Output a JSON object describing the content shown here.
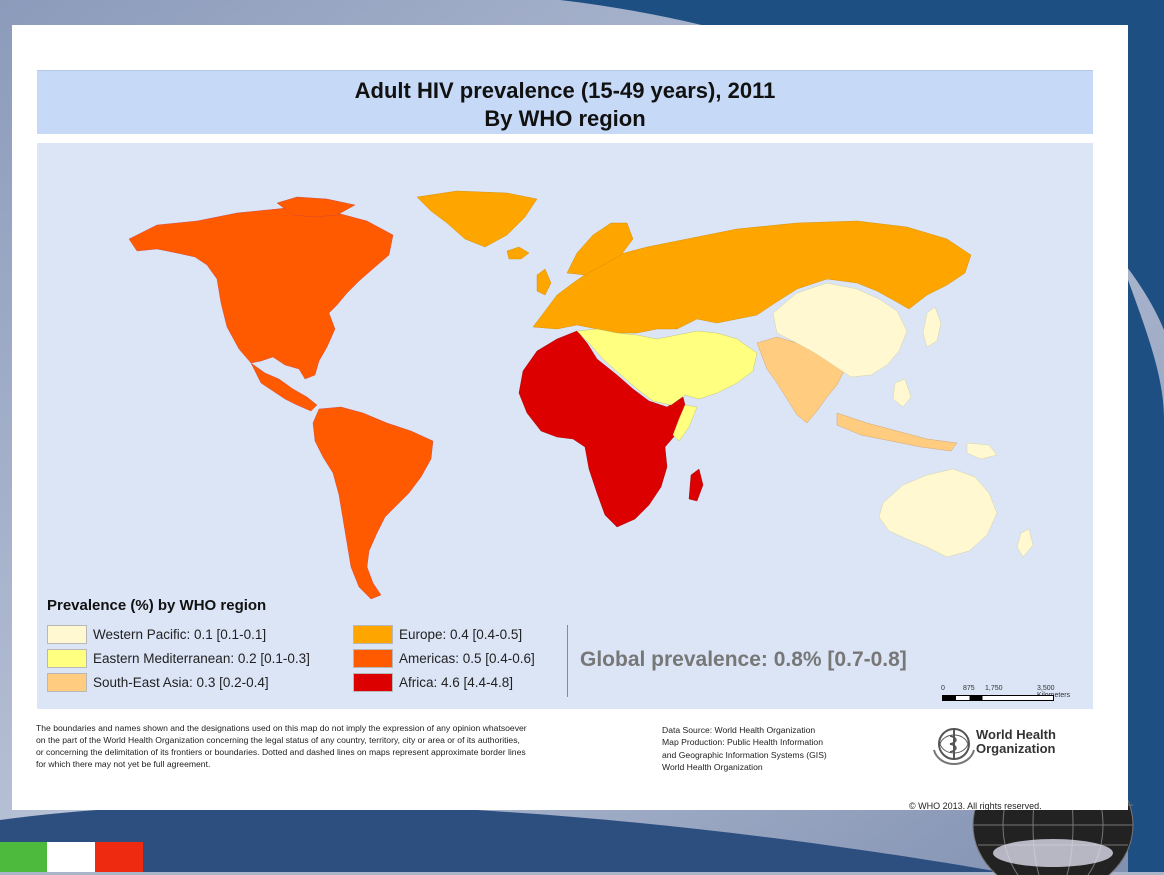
{
  "colors": {
    "western_pacific": "#fff8d0",
    "eastern_mediterranean": "#ffff80",
    "south_east_asia": "#ffcc80",
    "europe": "#ffa500",
    "americas": "#ff5a00",
    "africa": "#dd0000",
    "ocean": "#dbe5f6",
    "title_band": "#c6d9f7"
  },
  "map": {
    "title_line1": "Adult HIV prevalence (15-49 years), 2011",
    "title_line2": "By WHO region",
    "legend_title": "Prevalence (%) by WHO region",
    "legend": [
      {
        "label": "Western Pacific: 0.1 [0.1-0.1]",
        "color": "#fff8d0"
      },
      {
        "label": "Eastern Mediterranean: 0.2 [0.1-0.3]",
        "color": "#ffff80"
      },
      {
        "label": "South-East Asia: 0.3 [0.2-0.4]",
        "color": "#ffcc80"
      },
      {
        "label": "Europe: 0.4 [0.4-0.5]",
        "color": "#ffa500"
      },
      {
        "label": "Americas: 0.5 [0.4-0.6]",
        "color": "#ff5a00"
      },
      {
        "label": "Africa: 4.6 [4.4-4.8]",
        "color": "#dd0000"
      }
    ],
    "global_prevalence": "Global prevalence: 0.8% [0.7-0.8]",
    "scale": {
      "ticks": [
        "0",
        "875",
        "1,750",
        "3,500 Kilometers"
      ]
    }
  },
  "footer": {
    "disclaimer": [
      "The boundaries and names shown and the designations used on this map do not imply the expression of any opinion whatsoever",
      "on the part of the World Health Organization concerning the legal status of any country, territory, city or area or of its authorities,",
      "or concerning the delimitation of its frontiers or boundaries. Dotted and dashed lines on maps represent approximate border lines",
      "for which there may not yet be full agreement."
    ],
    "credits": [
      "Data Source: World Health Organization",
      "Map Production: Public Health Information",
      "and Geographic Information Systems (GIS)",
      "World Health Organization"
    ],
    "who_name_line1": "World Health",
    "who_name_line2": "Organization",
    "copyright": "© WHO 2013. All rights reserved."
  }
}
